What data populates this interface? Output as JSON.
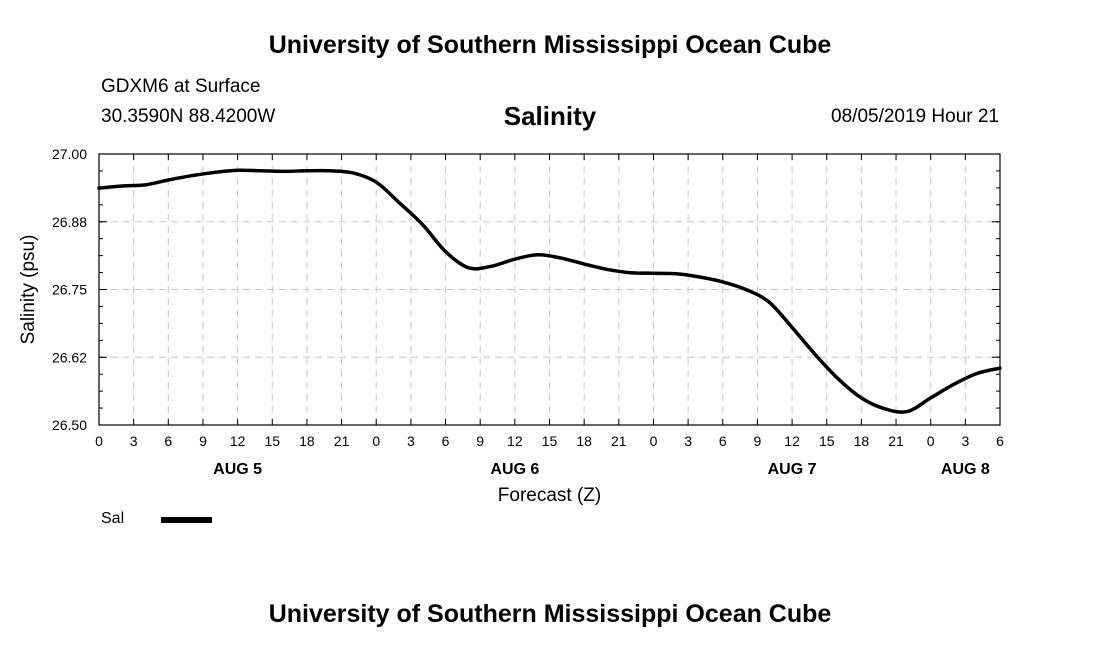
{
  "header": {
    "title": "University of Southern Mississippi Ocean Cube",
    "station": "GDXM6 at Surface",
    "coordinates": "30.3590N 88.4200W",
    "variable_title": "Salinity",
    "run_date": "08/05/2019 Hour 21"
  },
  "footer": {
    "title": "University of Southern Mississippi Ocean Cube"
  },
  "legend": {
    "label": "Sal",
    "color": "#000000"
  },
  "chart_data": {
    "type": "line",
    "title": "Salinity",
    "xlabel": "Forecast (Z)",
    "ylabel": "Salinity (psu)",
    "x_unit": "hours since AUG 5 00Z",
    "xlim": [
      0,
      78
    ],
    "ylim": [
      26.5,
      27.0
    ],
    "grid": true,
    "legend_position": "bottom-left",
    "y_ticks": [
      "26.50",
      "26.62",
      "26.75",
      "26.88",
      "27.00"
    ],
    "y_tick_values": [
      26.5,
      26.625,
      26.75,
      26.875,
      27.0
    ],
    "x_tick_labels": [
      "0",
      "3",
      "6",
      "9",
      "12",
      "15",
      "18",
      "21",
      "0",
      "3",
      "6",
      "9",
      "12",
      "15",
      "18",
      "21",
      "0",
      "3",
      "6",
      "9",
      "12",
      "15",
      "18",
      "21",
      "0",
      "3",
      "6"
    ],
    "date_labels": [
      {
        "text": "AUG 5",
        "hour": 12
      },
      {
        "text": "AUG 6",
        "hour": 36
      },
      {
        "text": "AUG 7",
        "hour": 60
      },
      {
        "text": "AUG 8",
        "hour": 75
      }
    ],
    "series": [
      {
        "name": "Sal",
        "color": "#000000",
        "x": [
          0,
          2,
          4,
          6,
          8,
          10,
          12,
          14,
          16,
          18,
          20,
          22,
          24,
          26,
          28,
          30,
          32,
          34,
          36,
          38,
          40,
          42,
          44,
          46,
          48,
          50,
          52,
          54,
          56,
          58,
          60,
          62,
          64,
          66,
          68,
          70,
          72,
          74,
          76,
          78
        ],
        "values": [
          26.937,
          26.941,
          26.943,
          26.952,
          26.96,
          26.966,
          26.97,
          26.969,
          26.968,
          26.969,
          26.969,
          26.965,
          26.948,
          26.91,
          26.87,
          26.82,
          26.79,
          26.793,
          26.806,
          26.814,
          26.808,
          26.797,
          26.787,
          26.781,
          26.78,
          26.779,
          26.773,
          26.764,
          26.75,
          26.727,
          26.68,
          26.63,
          26.585,
          26.55,
          26.53,
          26.525,
          26.55,
          26.575,
          26.595,
          26.605
        ]
      }
    ]
  }
}
